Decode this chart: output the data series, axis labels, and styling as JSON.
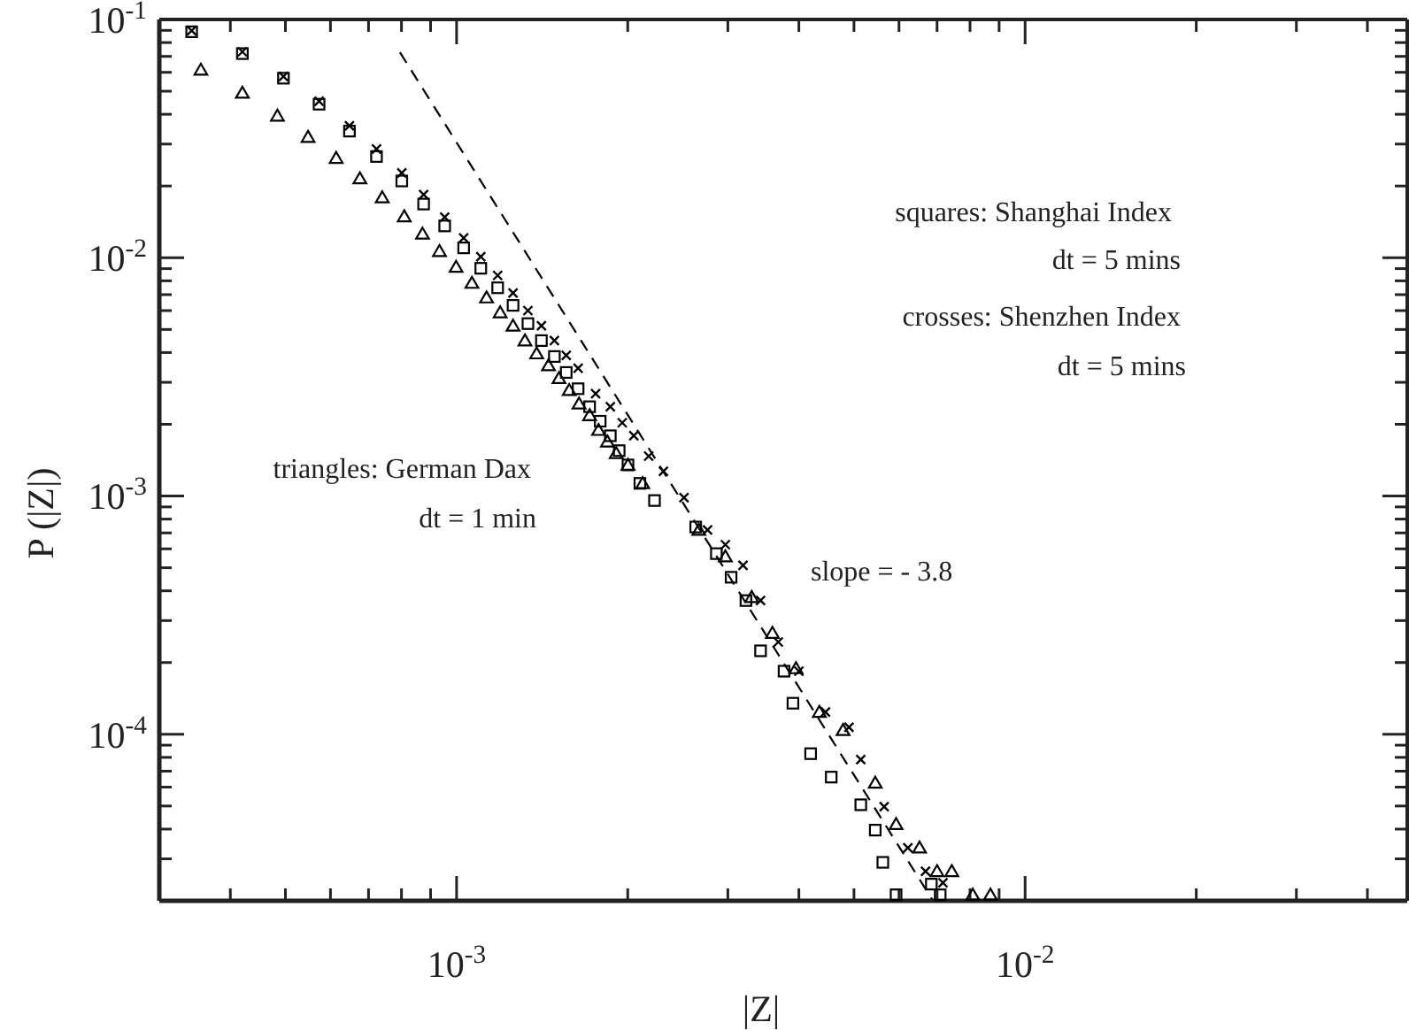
{
  "chart_data": {
    "type": "scatter",
    "xlabel": "|Z|",
    "ylabel": "P (|Z|)",
    "log": "xy",
    "xlim": [
      0.0003,
      0.047
    ],
    "ylim": [
      2e-05,
      0.1
    ],
    "xticks": [
      {
        "value": 0.0004,
        "label": null
      },
      {
        "value": 0.0005,
        "label": null
      },
      {
        "value": 0.0006,
        "label": null
      },
      {
        "value": 0.0007,
        "label": null
      },
      {
        "value": 0.0008,
        "label": null
      },
      {
        "value": 0.0009,
        "label": null
      },
      {
        "value": 0.001,
        "label": "10$^{-3}$"
      },
      {
        "value": 0.002,
        "label": null
      },
      {
        "value": 0.003,
        "label": null
      },
      {
        "value": 0.004,
        "label": null
      },
      {
        "value": 0.005,
        "label": null
      },
      {
        "value": 0.006,
        "label": null
      },
      {
        "value": 0.007,
        "label": null
      },
      {
        "value": 0.008,
        "label": null
      },
      {
        "value": 0.009,
        "label": null
      },
      {
        "value": 0.01,
        "label": "10$^{-2}$"
      },
      {
        "value": 0.02,
        "label": null
      },
      {
        "value": 0.03,
        "label": null
      },
      {
        "value": 0.04,
        "label": null
      }
    ],
    "yticks": [
      {
        "value": 2e-05,
        "label": null
      },
      {
        "value": 3e-05,
        "label": null
      },
      {
        "value": 4e-05,
        "label": null
      },
      {
        "value": 5e-05,
        "label": null
      },
      {
        "value": 6e-05,
        "label": null
      },
      {
        "value": 7e-05,
        "label": null
      },
      {
        "value": 8e-05,
        "label": null
      },
      {
        "value": 9e-05,
        "label": null
      },
      {
        "value": 0.0001,
        "label": "10$^{-4}$"
      },
      {
        "value": 0.0002,
        "label": null
      },
      {
        "value": 0.0003,
        "label": null
      },
      {
        "value": 0.0004,
        "label": null
      },
      {
        "value": 0.0005,
        "label": null
      },
      {
        "value": 0.0006,
        "label": null
      },
      {
        "value": 0.0007,
        "label": null
      },
      {
        "value": 0.0008,
        "label": null
      },
      {
        "value": 0.0009,
        "label": null
      },
      {
        "value": 0.001,
        "label": "10$^{-3}$"
      },
      {
        "value": 0.002,
        "label": null
      },
      {
        "value": 0.003,
        "label": null
      },
      {
        "value": 0.004,
        "label": null
      },
      {
        "value": 0.005,
        "label": null
      },
      {
        "value": 0.006,
        "label": null
      },
      {
        "value": 0.007,
        "label": null
      },
      {
        "value": 0.008,
        "label": null
      },
      {
        "value": 0.009,
        "label": null
      },
      {
        "value": 0.01,
        "label": "10$^{-2}$"
      },
      {
        "value": 0.02,
        "label": null
      },
      {
        "value": 0.03,
        "label": null
      },
      {
        "value": 0.04,
        "label": null
      },
      {
        "value": 0.05,
        "label": null
      },
      {
        "value": 0.06,
        "label": null
      },
      {
        "value": 0.07,
        "label": null
      },
      {
        "value": 0.08,
        "label": null
      },
      {
        "value": 0.09,
        "label": null
      },
      {
        "value": 0.1,
        "label": "10$^{-1}$"
      }
    ],
    "series": [
      {
        "marker": "square",
        "color": "#000000",
        "x": [
          0.000342,
          0.00042,
          0.000496,
          0.000573,
          0.000648,
          0.000723,
          0.000801,
          0.000875,
          0.000953,
          0.001029,
          0.001103,
          0.001181,
          0.001257,
          0.001335,
          0.00141,
          0.001486,
          0.001559,
          0.001636,
          0.001714,
          0.001789,
          0.001864,
          0.001932,
          0.002002,
          0.002101,
          0.002229,
          0.002634,
          0.002864,
          0.00304,
          0.003228,
          0.003425,
          0.003767,
          0.003905,
          0.004195,
          0.00456,
          0.00514,
          0.00545,
          0.00562,
          0.00593,
          0.00684,
          0.00709
        ],
        "values": [
          0.0888,
          0.0719,
          0.0567,
          0.0441,
          0.034,
          0.0266,
          0.021,
          0.0168,
          0.0136,
          0.011,
          0.00903,
          0.00748,
          0.00631,
          0.00529,
          0.00449,
          0.00385,
          0.0033,
          0.00282,
          0.00237,
          0.00206,
          0.00179,
          0.00155,
          0.00135,
          0.00113,
          0.000957,
          0.000741,
          0.000573,
          0.000456,
          0.000364,
          0.000224,
          0.000184,
          0.000135,
          8.29e-05,
          6.61e-05,
          5.06e-05,
          3.96e-05,
          2.9e-05,
          2.12e-05,
          2.35e-05,
          2.12e-05
        ]
      },
      {
        "marker": "cross",
        "color": "#000000",
        "x": [
          0.000342,
          0.00042,
          0.000496,
          0.000573,
          0.000648,
          0.000723,
          0.000801,
          0.000875,
          0.000953,
          0.001029,
          0.001103,
          0.001181,
          0.001257,
          0.001335,
          0.00141,
          0.001486,
          0.001559,
          0.001636,
          0.001756,
          0.001864,
          0.001956,
          0.00205,
          0.002177,
          0.002311,
          0.002512,
          0.002763,
          0.00297,
          0.00319,
          0.003425,
          0.00368,
          0.004,
          0.004455,
          0.0049,
          0.00514,
          0.00565,
          0.00622,
          0.00668,
          0.00717
        ],
        "values": [
          0.0898,
          0.0732,
          0.0577,
          0.0454,
          0.0358,
          0.0286,
          0.0227,
          0.0184,
          0.0148,
          0.0121,
          0.0101,
          0.00843,
          0.00711,
          0.006,
          0.00518,
          0.00449,
          0.00389,
          0.00344,
          0.00269,
          0.00237,
          0.00203,
          0.00179,
          0.00147,
          0.00127,
          0.000984,
          0.00072,
          0.000625,
          0.000512,
          0.000364,
          0.000244,
          0.000184,
          0.000124,
          0.000107,
          7.83e-05,
          4.97e-05,
          3.34e-05,
          2.66e-05,
          2.38e-05
        ]
      },
      {
        "marker": "triangle",
        "color": "#000000",
        "x": [
          0.000355,
          0.00042,
          0.000484,
          0.000548,
          0.000614,
          0.000676,
          0.00074,
          0.000809,
          0.000871,
          0.000933,
          0.000998,
          0.001064,
          0.001129,
          0.001193,
          0.001257,
          0.001319,
          0.001383,
          0.001451,
          0.001514,
          0.001578,
          0.001642,
          0.001714,
          0.001777,
          0.001842,
          0.001909,
          0.002002,
          0.002125,
          0.002667,
          0.00297,
          0.003304,
          0.003593,
          0.003953,
          0.004346,
          0.004784,
          0.00545,
          0.00593,
          0.00652,
          0.007,
          0.00743,
          0.00809,
          0.00869
        ],
        "values": [
          0.0614,
          0.0492,
          0.0394,
          0.0321,
          0.0262,
          0.0215,
          0.0179,
          0.0149,
          0.0126,
          0.01065,
          0.00914,
          0.00783,
          0.0068,
          0.00589,
          0.00518,
          0.00449,
          0.00396,
          0.00353,
          0.00312,
          0.00278,
          0.00244,
          0.00218,
          0.00189,
          0.00169,
          0.00151,
          0.00135,
          0.00113,
          0.00072,
          0.000557,
          0.000376,
          0.000266,
          0.000189,
          0.000124,
          0.000104,
          6.25e-05,
          4.19e-05,
          3.34e-05,
          2.66e-05,
          2.66e-05,
          2.12e-05,
          2.12e-05
        ]
      },
      {
        "type": "line",
        "marker": "none",
        "line_style": "dashed",
        "color": "#000000",
        "x": [
          0.000795,
          0.00686
        ],
        "values": [
          0.0728,
          2.03e-05
        ]
      }
    ],
    "annotations": [
      "squares: Shanghai Index",
      "dt = 5 mins",
      "crosses: Shenzhen Index",
      "dt = 5 mins",
      "triangles: German Dax",
      "dt = 1 min",
      "slope = - 3.8"
    ]
  }
}
